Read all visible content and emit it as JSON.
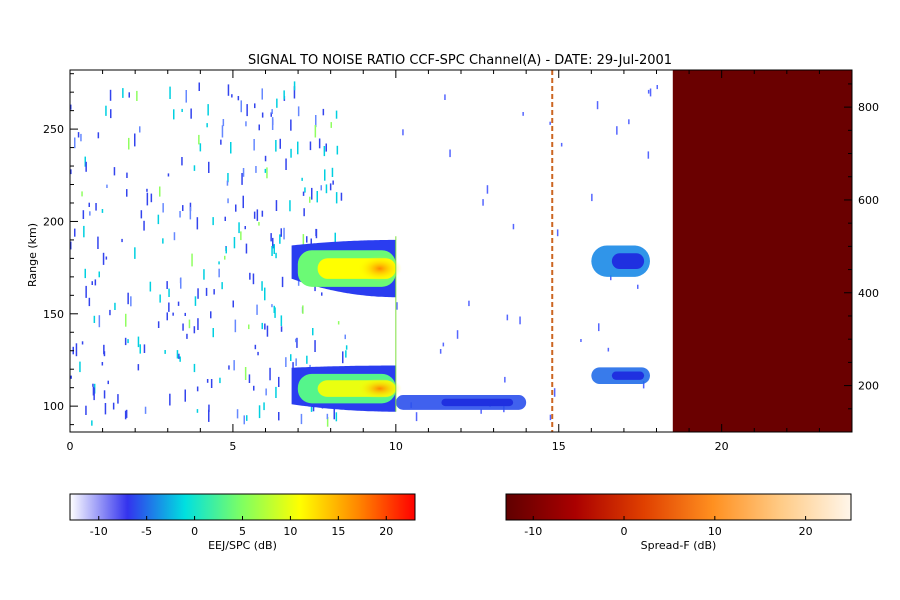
{
  "title": "SIGNAL TO NOISE RATIO CCF-SPC Channel(A) - DATE: 29-Jul-2001",
  "chart_data": {
    "type": "heatmap",
    "xlabel": "",
    "ylabel": "Range (km)",
    "x_ticks": [
      "0",
      "5",
      "10",
      "15",
      "20"
    ],
    "xlim": [
      0,
      24
    ],
    "ylim": [
      86,
      282
    ],
    "y_ticks": [
      "100",
      "150",
      "200",
      "250"
    ],
    "right_ylim": [
      100,
      880
    ],
    "right_y_ticks": [
      "200",
      "400",
      "600",
      "800"
    ],
    "echo_regions": [
      {
        "name": "upper-evening-echo",
        "t_start": 6.8,
        "t_end": 10.0,
        "range_min": 159,
        "range_max": 190,
        "peak_db": 19
      },
      {
        "name": "lower-evening-echo",
        "t_start": 6.8,
        "t_end": 10.0,
        "range_min": 97,
        "range_max": 122,
        "peak_db": 17
      },
      {
        "name": "lower-night-trail",
        "t_start": 10.0,
        "t_end": 14.0,
        "range_min": 98,
        "range_max": 106,
        "peak_db": -6
      },
      {
        "name": "upper-late-echo",
        "t_start": 16.0,
        "t_end": 17.8,
        "range_min": 170,
        "range_max": 187,
        "peak_db": -4
      },
      {
        "name": "lower-late-echo",
        "t_start": 16.0,
        "t_end": 17.8,
        "range_min": 112,
        "range_max": 121,
        "peak_db": -5
      }
    ],
    "spreadf_region": {
      "t_start": 18.5,
      "t_end": 24.0,
      "value_db": -12
    },
    "marker_time": 14.8,
    "colorbars": [
      {
        "label": "EEJ/SPC (dB)",
        "min": -13,
        "max": 23,
        "ticks": [
          "-10",
          "-5",
          "0",
          "5",
          "10",
          "15",
          "20"
        ],
        "tick_values": [
          -10,
          -5,
          0,
          5,
          10,
          15,
          20
        ],
        "colors": [
          "#ffffff",
          "#3333ee",
          "#00e0e0",
          "#80ff60",
          "#ffff00",
          "#ff8800",
          "#ff0000"
        ]
      },
      {
        "label": "Spread-F (dB)",
        "min": -13,
        "max": 25,
        "ticks": [
          "-10",
          "0",
          "10",
          "20"
        ],
        "tick_values": [
          -10,
          0,
          10,
          20
        ],
        "colors": [
          "#600000",
          "#aa0000",
          "#e04000",
          "#ff9020",
          "#ffcc88",
          "#fff6ea"
        ]
      }
    ]
  }
}
